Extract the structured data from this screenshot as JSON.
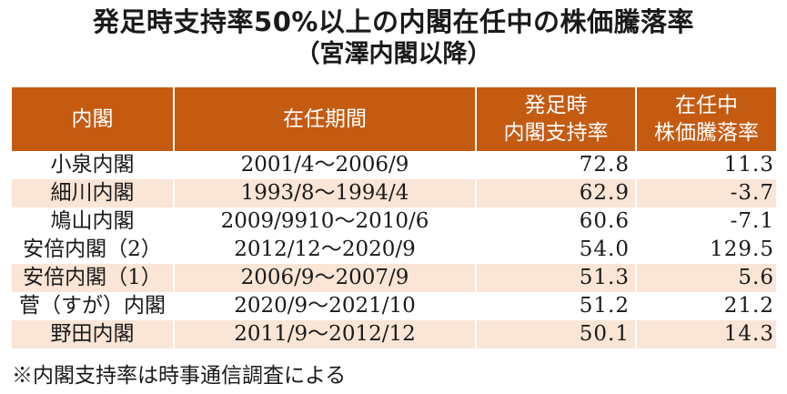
{
  "title": {
    "line1": "発足時支持率50%以上の内閣在任中の株価騰落率",
    "line2": "（宮澤内閣以降）"
  },
  "table": {
    "headers": [
      {
        "lines": [
          "内閣"
        ]
      },
      {
        "lines": [
          "在任期間"
        ]
      },
      {
        "lines": [
          "発足時",
          "内閣支持率"
        ]
      },
      {
        "lines": [
          "在任中",
          "株価騰落率"
        ]
      }
    ],
    "rows": [
      {
        "cabinet": "小泉内閣",
        "term": "2001/4～2006/9",
        "approval": "72.8",
        "stock_change": "11.3"
      },
      {
        "cabinet": "細川内閣",
        "term": "1993/8～1994/4",
        "approval": "62.9",
        "stock_change": "-3.7"
      },
      {
        "cabinet": "鳩山内閣",
        "term": "2009/9910～2010/6",
        "approval": "60.6",
        "stock_change": "-7.1"
      },
      {
        "cabinet": "安倍内閣（2）",
        "term": "2012/12～2020/9",
        "approval": "54.0",
        "stock_change": "129.5"
      },
      {
        "cabinet": "安倍内閣（1）",
        "term": "2006/9～2007/9",
        "approval": "51.3",
        "stock_change": "5.6"
      },
      {
        "cabinet": "菅（すが）内閣",
        "term": "2020/9～2021/10",
        "approval": "51.2",
        "stock_change": "21.2"
      },
      {
        "cabinet": "野田内閣",
        "term": "2011/9～2012/12",
        "approval": "50.1",
        "stock_change": "14.3"
      }
    ]
  },
  "footnote": "※内閣支持率は時事通信調査による",
  "colors": {
    "header_bg": "#c55a11",
    "header_text": "#ffffff",
    "alt_row_bg": "#fbe5d6"
  }
}
